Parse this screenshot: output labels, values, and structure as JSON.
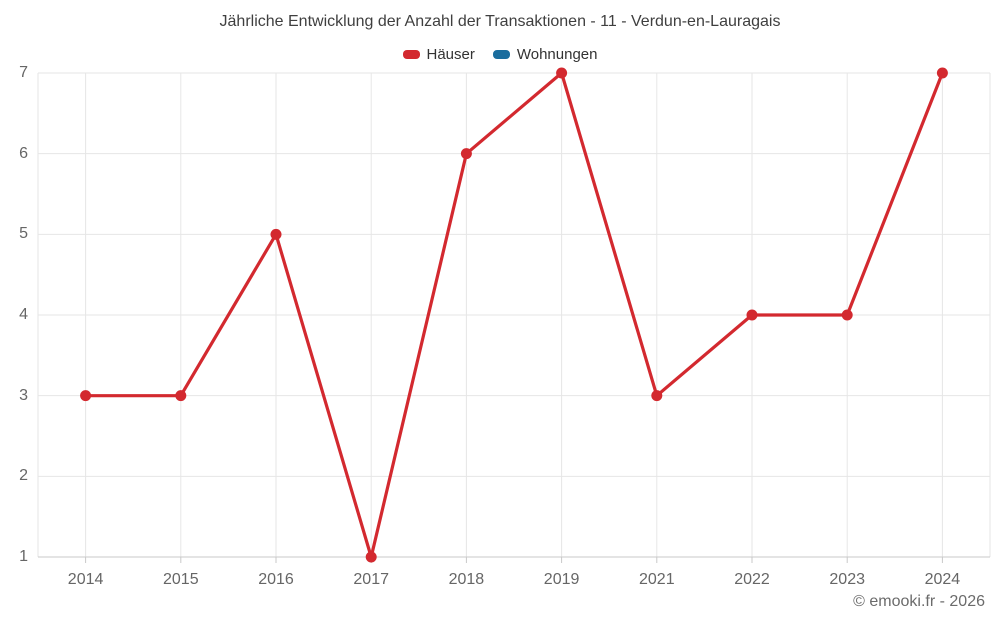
{
  "chart_data": {
    "type": "line",
    "title": "Jährliche Entwicklung der Anzahl der Transaktionen - 11 - Verdun-en-Lauragais",
    "categories": [
      "2014",
      "2015",
      "2016",
      "2017",
      "2018",
      "2019",
      "2021",
      "2022",
      "2023",
      "2024"
    ],
    "series": [
      {
        "name": "Häuser",
        "color": "#d3292f",
        "values": [
          3,
          3,
          5,
          1,
          6,
          7,
          3,
          4,
          4,
          7
        ]
      },
      {
        "name": "Wohnungen",
        "color": "#1a6d9e",
        "values": []
      }
    ],
    "xlabel": "",
    "ylabel": "",
    "ylim": [
      1,
      7
    ],
    "yticks": [
      1,
      2,
      3,
      4,
      5,
      6,
      7
    ],
    "grid": true,
    "legend_position": "top"
  },
  "colors": {
    "gridline": "#e6e6e6",
    "axis_line": "#c9c9c9",
    "title_text": "#3f3f3f",
    "axis_text": "#666666",
    "legend_text": "#333333"
  },
  "footer": {
    "credit": "© emooki.fr - 2026"
  }
}
